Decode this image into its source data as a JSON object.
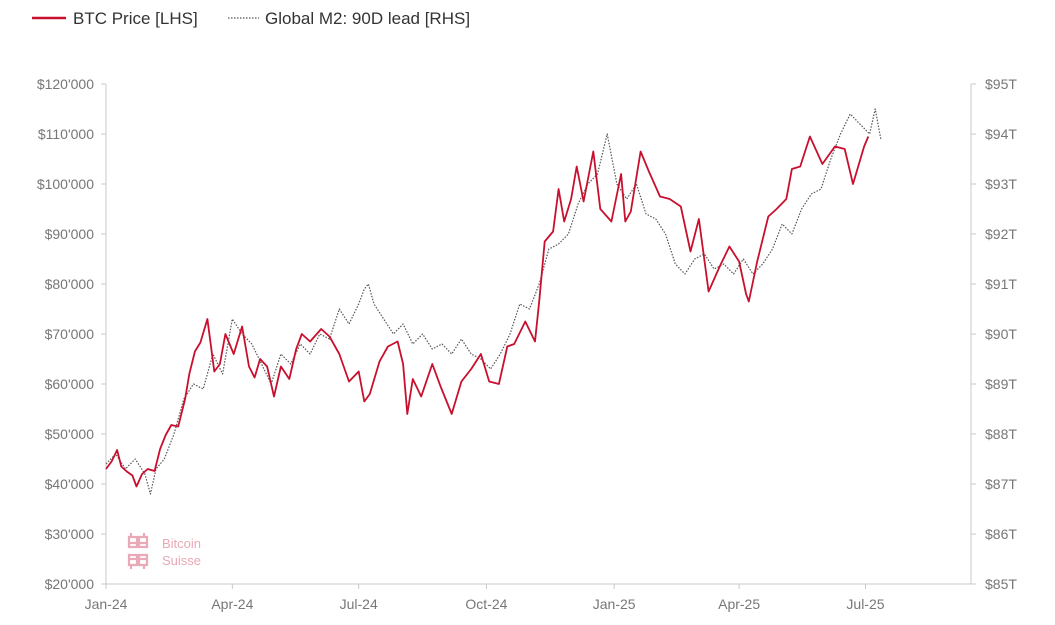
{
  "legend": {
    "btc_label": "BTC Price [LHS]",
    "m2_label": "Global M2: 90D lead [RHS]"
  },
  "logo": {
    "line1": "Bitcoin",
    "line2": "Suisse",
    "color": "#e9a9b6"
  },
  "colors": {
    "btc": "#c8102e",
    "m2": "#555555",
    "axis": "#c8c8c8"
  },
  "chart_data": {
    "type": "line",
    "title": "",
    "xlabel": "",
    "ylabel_left": "",
    "ylabel_right": "",
    "x_ticks": [
      "Jan-24",
      "Apr-24",
      "Jul-24",
      "Oct-24",
      "Jan-25",
      "Apr-25",
      "Jul-25"
    ],
    "x_tick_dates": [
      "2024-01-01",
      "2024-04-01",
      "2024-07-01",
      "2024-10-01",
      "2025-01-01",
      "2025-04-01",
      "2025-07-01"
    ],
    "xlim": [
      "2024-01-01",
      "2025-09-15"
    ],
    "y_left": {
      "lim": [
        20000,
        120000
      ],
      "ticks": [
        20000,
        30000,
        40000,
        50000,
        60000,
        70000,
        80000,
        90000,
        100000,
        110000,
        120000
      ],
      "tick_labels": [
        "$20'000",
        "$30'000",
        "$40'000",
        "$50'000",
        "$60'000",
        "$70'000",
        "$80'000",
        "$90'000",
        "$100'000",
        "$110'000",
        "$120'000"
      ]
    },
    "y_right": {
      "lim": [
        85,
        95
      ],
      "ticks": [
        85,
        86,
        87,
        88,
        89,
        90,
        91,
        92,
        93,
        94,
        95
      ],
      "tick_labels": [
        "$85T",
        "$86T",
        "$87T",
        "$88T",
        "$89T",
        "$90T",
        "$91T",
        "$92T",
        "$93T",
        "$94T",
        "$95T"
      ]
    },
    "grid": false,
    "legend_position": "top-left",
    "series": [
      {
        "name": "BTC Price [LHS]",
        "axis": "left",
        "style": "solid",
        "color": "#c8102e",
        "points": [
          [
            "2024-01-01",
            43000
          ],
          [
            "2024-01-05",
            44500
          ],
          [
            "2024-01-09",
            46800
          ],
          [
            "2024-01-12",
            43500
          ],
          [
            "2024-01-16",
            42500
          ],
          [
            "2024-01-20",
            41700
          ],
          [
            "2024-01-23",
            39500
          ],
          [
            "2024-01-27",
            42000
          ],
          [
            "2024-01-31",
            43000
          ],
          [
            "2024-02-05",
            42600
          ],
          [
            "2024-02-09",
            47000
          ],
          [
            "2024-02-13",
            49800
          ],
          [
            "2024-02-17",
            51800
          ],
          [
            "2024-02-22",
            51500
          ],
          [
            "2024-02-27",
            57000
          ],
          [
            "2024-03-01",
            62000
          ],
          [
            "2024-03-05",
            66500
          ],
          [
            "2024-03-09",
            68300
          ],
          [
            "2024-03-14",
            73000
          ],
          [
            "2024-03-19",
            62500
          ],
          [
            "2024-03-23",
            64000
          ],
          [
            "2024-03-27",
            70000
          ],
          [
            "2024-04-02",
            66000
          ],
          [
            "2024-04-08",
            71500
          ],
          [
            "2024-04-13",
            63500
          ],
          [
            "2024-04-17",
            61300
          ],
          [
            "2024-04-21",
            65000
          ],
          [
            "2024-04-26",
            63500
          ],
          [
            "2024-05-01",
            57500
          ],
          [
            "2024-05-06",
            63500
          ],
          [
            "2024-05-12",
            61000
          ],
          [
            "2024-05-17",
            67000
          ],
          [
            "2024-05-21",
            70000
          ],
          [
            "2024-05-27",
            68500
          ],
          [
            "2024-06-04",
            71000
          ],
          [
            "2024-06-10",
            69500
          ],
          [
            "2024-06-17",
            66000
          ],
          [
            "2024-06-24",
            60500
          ],
          [
            "2024-07-01",
            62500
          ],
          [
            "2024-07-05",
            56500
          ],
          [
            "2024-07-09",
            58000
          ],
          [
            "2024-07-16",
            64500
          ],
          [
            "2024-07-22",
            67500
          ],
          [
            "2024-07-29",
            68500
          ],
          [
            "2024-08-02",
            64000
          ],
          [
            "2024-08-05",
            54000
          ],
          [
            "2024-08-09",
            61000
          ],
          [
            "2024-08-15",
            57500
          ],
          [
            "2024-08-23",
            64000
          ],
          [
            "2024-08-29",
            59500
          ],
          [
            "2024-09-06",
            54000
          ],
          [
            "2024-09-13",
            60500
          ],
          [
            "2024-09-20",
            63000
          ],
          [
            "2024-09-27",
            66000
          ],
          [
            "2024-10-03",
            60500
          ],
          [
            "2024-10-10",
            60000
          ],
          [
            "2024-10-16",
            67500
          ],
          [
            "2024-10-21",
            68000
          ],
          [
            "2024-10-29",
            72500
          ],
          [
            "2024-11-05",
            68500
          ],
          [
            "2024-11-08",
            76500
          ],
          [
            "2024-11-12",
            88500
          ],
          [
            "2024-11-18",
            90500
          ],
          [
            "2024-11-22",
            99000
          ],
          [
            "2024-11-26",
            92500
          ],
          [
            "2024-12-01",
            97000
          ],
          [
            "2024-12-05",
            103500
          ],
          [
            "2024-12-10",
            96500
          ],
          [
            "2024-12-17",
            106500
          ],
          [
            "2024-12-22",
            95000
          ],
          [
            "2024-12-30",
            92500
          ],
          [
            "2025-01-06",
            102000
          ],
          [
            "2025-01-09",
            92500
          ],
          [
            "2025-01-13",
            94500
          ],
          [
            "2025-01-20",
            106500
          ],
          [
            "2025-01-26",
            102500
          ],
          [
            "2025-02-03",
            97500
          ],
          [
            "2025-02-10",
            97000
          ],
          [
            "2025-02-18",
            95500
          ],
          [
            "2025-02-25",
            86500
          ],
          [
            "2025-03-03",
            93000
          ],
          [
            "2025-03-10",
            78500
          ],
          [
            "2025-03-18",
            83500
          ],
          [
            "2025-03-25",
            87500
          ],
          [
            "2025-04-01",
            84500
          ],
          [
            "2025-04-06",
            78000
          ],
          [
            "2025-04-08",
            76500
          ],
          [
            "2025-04-14",
            84500
          ],
          [
            "2025-04-22",
            93500
          ],
          [
            "2025-04-28",
            95000
          ],
          [
            "2025-05-05",
            97000
          ],
          [
            "2025-05-09",
            103000
          ],
          [
            "2025-05-15",
            103500
          ],
          [
            "2025-05-22",
            109500
          ],
          [
            "2025-05-31",
            104000
          ],
          [
            "2025-06-09",
            107500
          ],
          [
            "2025-06-16",
            107000
          ],
          [
            "2025-06-22",
            100000
          ],
          [
            "2025-06-30",
            107500
          ],
          [
            "2025-07-03",
            109500
          ]
        ]
      },
      {
        "name": "Global M2: 90D lead [RHS]",
        "axis": "right",
        "style": "dotted",
        "color": "#555555",
        "points": [
          [
            "2024-01-01",
            87.4
          ],
          [
            "2024-01-08",
            87.6
          ],
          [
            "2024-01-15",
            87.3
          ],
          [
            "2024-01-22",
            87.5
          ],
          [
            "2024-01-29",
            87.2
          ],
          [
            "2024-02-02",
            86.8
          ],
          [
            "2024-02-06",
            87.3
          ],
          [
            "2024-02-12",
            87.5
          ],
          [
            "2024-02-19",
            88.0
          ],
          [
            "2024-02-26",
            88.7
          ],
          [
            "2024-03-04",
            89.0
          ],
          [
            "2024-03-11",
            88.9
          ],
          [
            "2024-03-18",
            89.6
          ],
          [
            "2024-03-25",
            89.2
          ],
          [
            "2024-04-01",
            90.3
          ],
          [
            "2024-04-08",
            90.0
          ],
          [
            "2024-04-15",
            89.8
          ],
          [
            "2024-04-22",
            89.4
          ],
          [
            "2024-04-29",
            89.0
          ],
          [
            "2024-05-06",
            89.6
          ],
          [
            "2024-05-13",
            89.4
          ],
          [
            "2024-05-20",
            89.8
          ],
          [
            "2024-05-27",
            89.6
          ],
          [
            "2024-06-03",
            90.0
          ],
          [
            "2024-06-10",
            89.9
          ],
          [
            "2024-06-17",
            90.5
          ],
          [
            "2024-06-24",
            90.2
          ],
          [
            "2024-07-01",
            90.6
          ],
          [
            "2024-07-05",
            90.9
          ],
          [
            "2024-07-08",
            91.0
          ],
          [
            "2024-07-12",
            90.6
          ],
          [
            "2024-07-19",
            90.3
          ],
          [
            "2024-07-26",
            90.0
          ],
          [
            "2024-08-02",
            90.2
          ],
          [
            "2024-08-09",
            89.8
          ],
          [
            "2024-08-16",
            90.0
          ],
          [
            "2024-08-23",
            89.7
          ],
          [
            "2024-08-30",
            89.8
          ],
          [
            "2024-09-06",
            89.6
          ],
          [
            "2024-09-13",
            89.9
          ],
          [
            "2024-09-20",
            89.6
          ],
          [
            "2024-09-27",
            89.5
          ],
          [
            "2024-10-04",
            89.3
          ],
          [
            "2024-10-11",
            89.6
          ],
          [
            "2024-10-18",
            90.0
          ],
          [
            "2024-10-25",
            90.6
          ],
          [
            "2024-11-01",
            90.5
          ],
          [
            "2024-11-08",
            91.0
          ],
          [
            "2024-11-15",
            91.7
          ],
          [
            "2024-11-22",
            91.8
          ],
          [
            "2024-11-29",
            92.0
          ],
          [
            "2024-12-06",
            92.6
          ],
          [
            "2024-12-13",
            93.0
          ],
          [
            "2024-12-20",
            93.2
          ],
          [
            "2024-12-27",
            94.0
          ],
          [
            "2025-01-03",
            93.0
          ],
          [
            "2025-01-10",
            92.7
          ],
          [
            "2025-01-17",
            93.0
          ],
          [
            "2025-01-24",
            92.4
          ],
          [
            "2025-01-31",
            92.3
          ],
          [
            "2025-02-07",
            92.0
          ],
          [
            "2025-02-14",
            91.4
          ],
          [
            "2025-02-21",
            91.2
          ],
          [
            "2025-02-28",
            91.5
          ],
          [
            "2025-03-07",
            91.6
          ],
          [
            "2025-03-14",
            91.3
          ],
          [
            "2025-03-21",
            91.4
          ],
          [
            "2025-03-28",
            91.2
          ],
          [
            "2025-04-04",
            91.5
          ],
          [
            "2025-04-11",
            91.2
          ],
          [
            "2025-04-18",
            91.4
          ],
          [
            "2025-04-25",
            91.7
          ],
          [
            "2025-05-02",
            92.2
          ],
          [
            "2025-05-09",
            92.0
          ],
          [
            "2025-05-16",
            92.5
          ],
          [
            "2025-05-23",
            92.8
          ],
          [
            "2025-05-30",
            92.9
          ],
          [
            "2025-06-06",
            93.5
          ],
          [
            "2025-06-13",
            94.0
          ],
          [
            "2025-06-20",
            94.4
          ],
          [
            "2025-06-27",
            94.2
          ],
          [
            "2025-07-04",
            94.0
          ],
          [
            "2025-07-08",
            94.5
          ],
          [
            "2025-07-12",
            93.9
          ]
        ]
      }
    ]
  }
}
